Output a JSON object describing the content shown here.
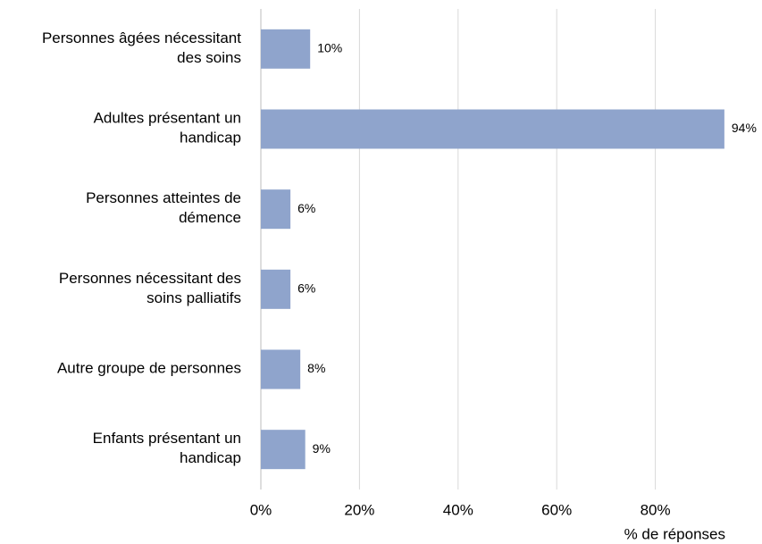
{
  "chart_data": {
    "type": "barh",
    "categories": [
      "Personnes âgées nécessitant\ndes soins",
      "Adultes présentant un\nhandicap",
      "Personnes atteintes de\ndémence",
      "Personnes nécessitant des\nsoins palliatifs",
      "Autre groupe de personnes",
      "Enfants présentant un\nhandicap"
    ],
    "values": [
      10,
      94,
      6,
      6,
      8,
      9
    ],
    "value_labels": [
      "10%",
      "94%",
      "6%",
      "6%",
      "8%",
      "9%"
    ],
    "color": "#8fa4cc",
    "xlabel": "% de réponses",
    "xlim": [
      0,
      100
    ],
    "xticks": [
      {
        "value": 0,
        "label": "0%"
      },
      {
        "value": 20,
        "label": "20%"
      },
      {
        "value": 40,
        "label": "40%"
      },
      {
        "value": 60,
        "label": "60%"
      },
      {
        "value": 80,
        "label": "80%"
      }
    ],
    "grid": true
  }
}
